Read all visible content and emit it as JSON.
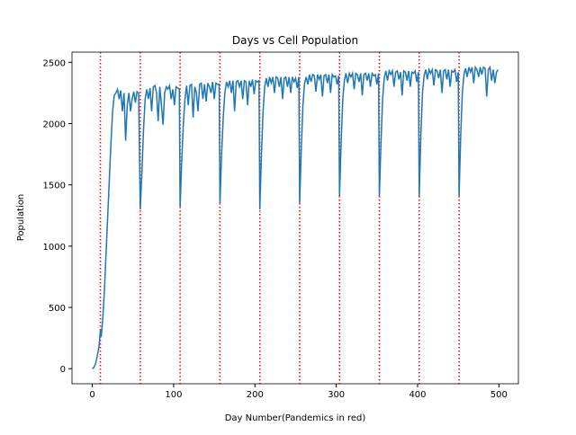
{
  "chart_data": {
    "type": "line",
    "title": "Days vs Cell Population",
    "x_label": "Day Number(Pandemics in red)",
    "y_label": "Population",
    "x": [
      0,
      2,
      4,
      6,
      8,
      9,
      10,
      11,
      13,
      15,
      17,
      19,
      21,
      23,
      25,
      27,
      29,
      31,
      33,
      35,
      37,
      39,
      41,
      43,
      45,
      47,
      49,
      51,
      53,
      55,
      57,
      59,
      61,
      63,
      65,
      67,
      69,
      71,
      73,
      75,
      77,
      79,
      81,
      83,
      85,
      87,
      89,
      91,
      93,
      95,
      97,
      99,
      101,
      103,
      105,
      107,
      108,
      110,
      112,
      114,
      116,
      118,
      120,
      122,
      124,
      126,
      128,
      130,
      132,
      134,
      136,
      138,
      140,
      142,
      144,
      146,
      148,
      150,
      152,
      154,
      156,
      157,
      159,
      161,
      163,
      165,
      167,
      169,
      171,
      173,
      175,
      177,
      179,
      181,
      183,
      185,
      187,
      189,
      191,
      193,
      195,
      197,
      199,
      201,
      203,
      205,
      206,
      208,
      210,
      212,
      214,
      216,
      218,
      220,
      222,
      224,
      226,
      228,
      230,
      232,
      234,
      236,
      238,
      240,
      242,
      244,
      246,
      248,
      250,
      252,
      254,
      255,
      257,
      259,
      261,
      263,
      265,
      267,
      269,
      271,
      273,
      275,
      277,
      279,
      281,
      283,
      285,
      287,
      289,
      291,
      293,
      295,
      297,
      299,
      301,
      303,
      304,
      306,
      308,
      310,
      312,
      314,
      316,
      318,
      320,
      322,
      324,
      326,
      328,
      330,
      332,
      334,
      336,
      338,
      340,
      342,
      344,
      346,
      348,
      350,
      352,
      353,
      355,
      357,
      359,
      361,
      363,
      365,
      367,
      369,
      371,
      373,
      375,
      377,
      379,
      381,
      383,
      385,
      387,
      389,
      391,
      393,
      395,
      397,
      399,
      401,
      402,
      404,
      406,
      408,
      410,
      412,
      414,
      416,
      418,
      420,
      422,
      424,
      426,
      428,
      430,
      432,
      434,
      436,
      438,
      440,
      442,
      444,
      446,
      448,
      450,
      451,
      453,
      455,
      457,
      459,
      461,
      463,
      465,
      467,
      469,
      471,
      473,
      475,
      477,
      479,
      481,
      483,
      485,
      487,
      489,
      491,
      493,
      495,
      497,
      499
    ],
    "series": [
      {
        "color": "#1f77b4",
        "values": [
          0,
          10,
          40,
          100,
          170,
          230,
          320,
          260,
          420,
          650,
          950,
          1250,
          1550,
          1850,
          2100,
          2230,
          2250,
          2280,
          2200,
          2270,
          2100,
          2250,
          1860,
          2150,
          2250,
          2100,
          2200,
          2260,
          2170,
          2260,
          2250,
          1300,
          1600,
          1950,
          2200,
          2280,
          2200,
          2290,
          2100,
          2300,
          2310,
          2250,
          2020,
          2300,
          2150,
          1990,
          2250,
          2300,
          2280,
          2310,
          2200,
          2280,
          2150,
          2300,
          2290,
          2280,
          1320,
          1700,
          2000,
          2200,
          2310,
          2150,
          2310,
          2320,
          2050,
          2300,
          2250,
          2100,
          2320,
          2330,
          2200,
          2320,
          2180,
          2330,
          2300,
          2250,
          2340,
          2200,
          2330,
          2320,
          2320,
          1350,
          1750,
          2050,
          2250,
          2340,
          2300,
          2350,
          2250,
          2350,
          2100,
          2340,
          2350,
          2300,
          2350,
          2200,
          2350,
          2340,
          2150,
          2350,
          2300,
          2360,
          2240,
          2350,
          2340,
          2350,
          1300,
          1750,
          2100,
          2300,
          2370,
          2300,
          2380,
          2330,
          2380,
          2250,
          2380,
          2370,
          2300,
          2380,
          2200,
          2370,
          2380,
          2300,
          2380,
          2250,
          2380,
          2340,
          2370,
          2290,
          2380,
          1350,
          1800,
          2150,
          2330,
          2380,
          2320,
          2400,
          2340,
          2400,
          2390,
          2260,
          2400,
          2360,
          2400,
          2220,
          2390,
          2400,
          2330,
          2400,
          2250,
          2400,
          2380,
          2390,
          2320,
          2390,
          1410,
          1850,
          2200,
          2350,
          2410,
          2330,
          2410,
          2380,
          2410,
          2280,
          2410,
          2400,
          2340,
          2410,
          2230,
          2400,
          2410,
          2350,
          2410,
          2300,
          2410,
          2390,
          2400,
          2320,
          2410,
          1410,
          1850,
          2200,
          2370,
          2430,
          2350,
          2430,
          2400,
          2430,
          2300,
          2420,
          2430,
          2360,
          2420,
          2230,
          2430,
          2420,
          2350,
          2430,
          2300,
          2420,
          2410,
          2430,
          2340,
          2420,
          1410,
          1900,
          2250,
          2390,
          2440,
          2360,
          2440,
          2410,
          2440,
          2310,
          2440,
          2430,
          2370,
          2440,
          2250,
          2430,
          2440,
          2360,
          2440,
          2300,
          2430,
          2420,
          2440,
          2340,
          2420,
          1410,
          1900,
          2250,
          2400,
          2450,
          2380,
          2460,
          2420,
          2460,
          2330,
          2460,
          2440,
          2380,
          2460,
          2400,
          2460,
          2450,
          2220,
          2440,
          2460,
          2350,
          2440,
          2330,
          2420,
          2440
        ]
      }
    ],
    "pandemic_days": [
      10,
      59,
      108,
      157,
      206,
      255,
      304,
      353,
      402,
      451
    ],
    "pandemic_color": "#ff0000",
    "xlim": [
      -24.95,
      523.95
    ],
    "ylim": [
      -123,
      2583
    ],
    "xticks": [
      0,
      100,
      200,
      300,
      400,
      500
    ],
    "yticks": [
      0,
      500,
      1000,
      1500,
      2000,
      2500
    ]
  }
}
